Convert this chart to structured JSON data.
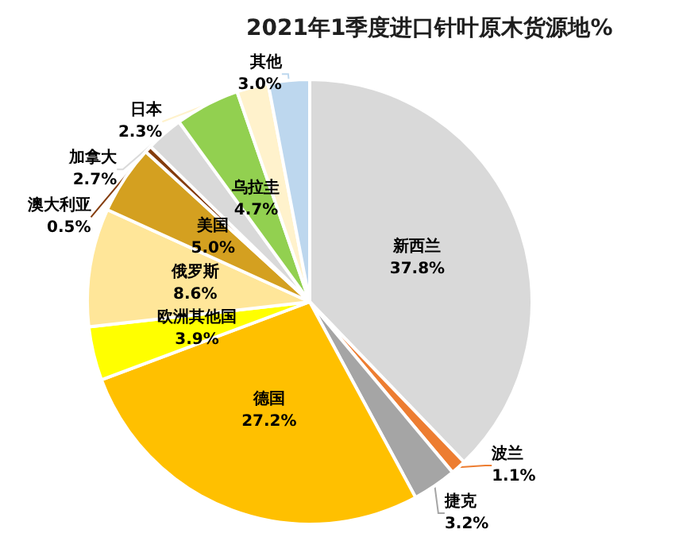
{
  "chart_data": {
    "type": "pie",
    "title": "2021年1季度进口针叶原木货源地%",
    "categories": [
      "新西兰",
      "波兰",
      "捷克",
      "德国",
      "欧洲其他国",
      "俄罗斯",
      "美国",
      "澳大利亚",
      "加拿大",
      "乌拉圭",
      "日本",
      "其他"
    ],
    "values": [
      37.8,
      1.1,
      3.2,
      27.2,
      3.9,
      8.6,
      5.0,
      0.5,
      2.7,
      4.7,
      2.3,
      3.0
    ],
    "value_labels": [
      "37.8%",
      "1.1%",
      "3.2%",
      "27.2%",
      "3.9%",
      "8.6%",
      "5.0%",
      "0.5%",
      "2.7%",
      "4.7%",
      "2.3%",
      "3.0%"
    ],
    "colors": [
      "#d9d9d9",
      "#ed7d31",
      "#a5a5a5",
      "#ffc000",
      "#ffff00",
      "#ffe699",
      "#d4a020",
      "#843c0c",
      "#d9d9d9",
      "#92d050",
      "#fff2cc",
      "#bdd7ee"
    ],
    "legend": false
  }
}
